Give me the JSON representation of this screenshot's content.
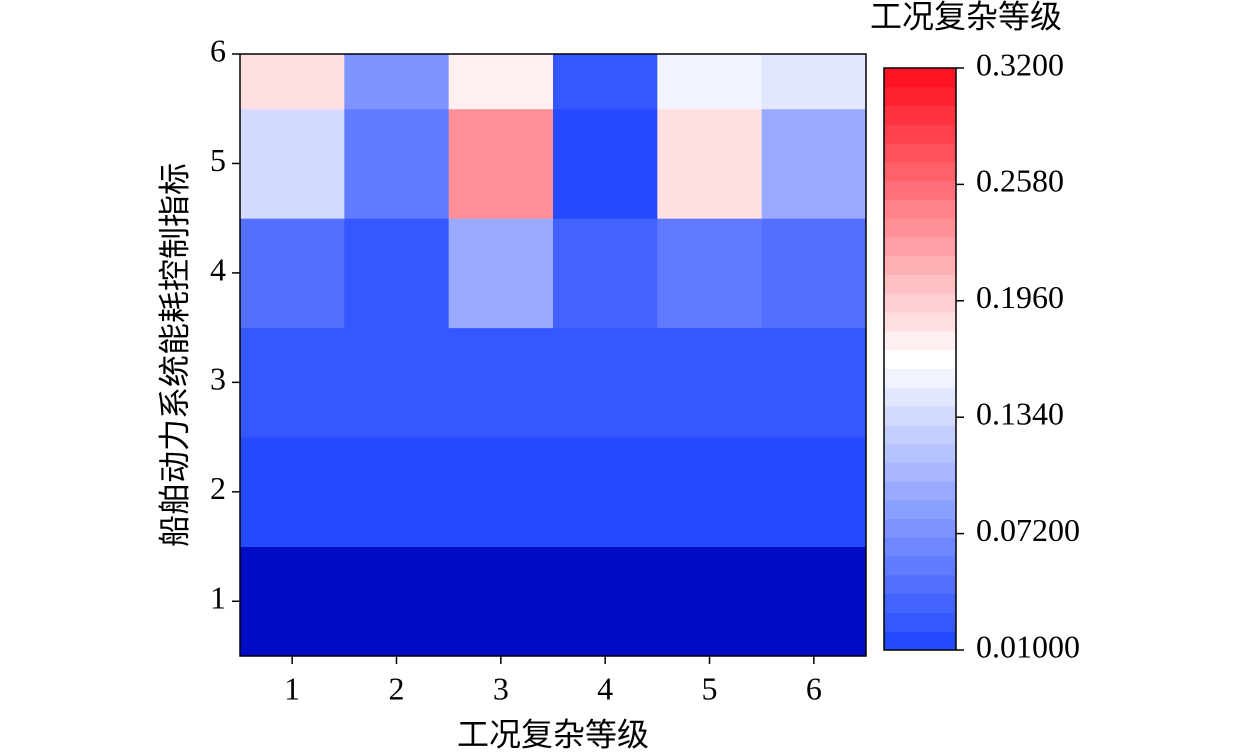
{
  "chart_data": {
    "type": "heatmap",
    "x_label": "工况复杂等级",
    "y_label": "船舶动力系统能耗控制指标",
    "colorbar_label": "工况复杂等级",
    "x": [
      1,
      2,
      3,
      4,
      5,
      6
    ],
    "y": [
      1,
      2,
      3,
      4,
      5,
      6
    ],
    "values": [
      [
        0.005,
        0.005,
        0.005,
        0.005,
        0.005,
        0.005
      ],
      [
        0.015,
        0.015,
        0.016,
        0.015,
        0.015,
        0.015
      ],
      [
        0.02,
        0.022,
        0.024,
        0.02,
        0.02,
        0.02
      ],
      [
        0.04,
        0.03,
        0.09,
        0.035,
        0.05,
        0.04
      ],
      [
        0.135,
        0.055,
        0.235,
        0.012,
        0.185,
        0.09
      ],
      [
        0.19,
        0.07,
        0.172,
        0.03,
        0.16,
        0.145
      ]
    ],
    "xlim": [
      0.5,
      6.5
    ],
    "ylim": [
      0.5,
      6
    ],
    "xticks": [
      1,
      2,
      3,
      4,
      5,
      6
    ],
    "yticks": [
      1,
      2,
      3,
      4,
      5,
      6
    ],
    "clim": [
      0.01,
      0.32
    ],
    "levels": 31,
    "cticks": [
      {
        "value": 0.01,
        "label": "0.01000"
      },
      {
        "value": 0.072,
        "label": "0.07200"
      },
      {
        "value": 0.134,
        "label": "0.1340"
      },
      {
        "value": 0.196,
        "label": "0.1960"
      },
      {
        "value": 0.258,
        "label": "0.2580"
      },
      {
        "value": 0.32,
        "label": "0.3200"
      }
    ],
    "colormap": {
      "low": "#1f45ff",
      "mid": "#ffffff",
      "high": "#ff0a1a",
      "under": "#000bc4"
    }
  }
}
